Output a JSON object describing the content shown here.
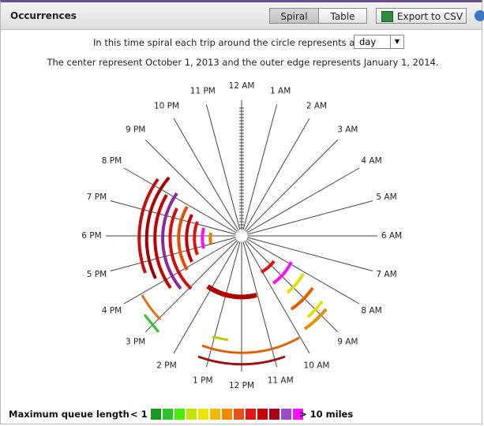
{
  "header": {
    "title": "Occurrences",
    "buttons": [
      "Spiral",
      "Table",
      "Export to CSV"
    ]
  },
  "description": {
    "line1": "In this time spiral each trip around the circle represents a",
    "period": "day",
    "line2": "The center represent October 1, 2013 and the outer edge represents January 1, 2014."
  },
  "spiral": {
    "hour_labels": [
      "12 AM",
      "1 AM",
      "2 AM",
      "3 AM",
      "4 AM",
      "5 AM",
      "6 AM",
      "7 AM",
      "8 AM",
      "9 AM",
      "10 AM",
      "11 AM",
      "12 PM",
      "1 PM",
      "2 PM",
      "3 PM",
      "4 PM",
      "5 PM",
      "6 PM",
      "7 PM",
      "8 PM",
      "9 PM",
      "10 PM",
      "11 PM"
    ]
  },
  "legend": {
    "title": "Maximum queue length",
    "low": "< 1",
    "high": "> 10 miles",
    "colors": [
      "#17991f",
      "#2fc22f",
      "#44f000",
      "#c4e400",
      "#ece300",
      "#f2b800",
      "#f08a00",
      "#e8501a",
      "#e01515",
      "#c80000",
      "#a80018",
      "#9a4cc8",
      "#ff10ff"
    ]
  }
}
